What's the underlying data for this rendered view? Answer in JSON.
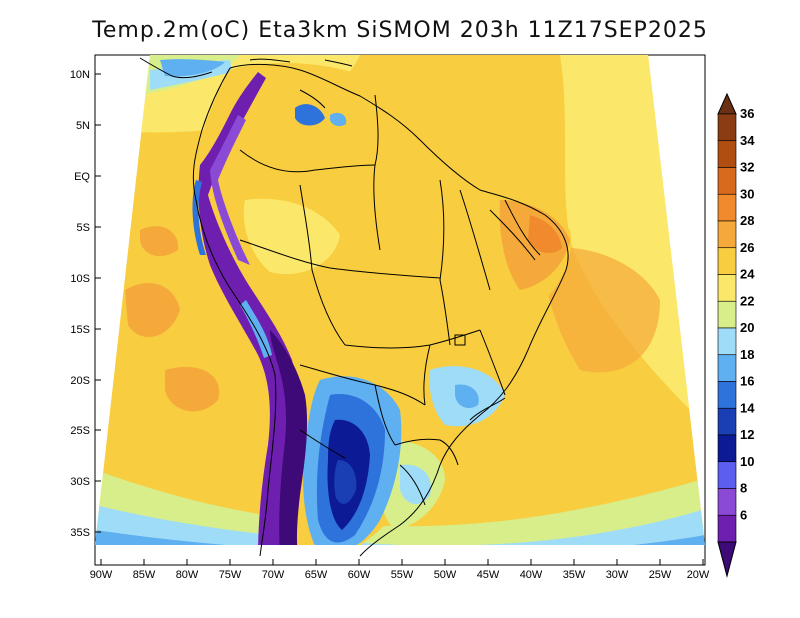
{
  "title": "Temp.2m(oC) Eta3km SiSMOM 203h 11Z17SEP2025",
  "map": {
    "region": "South America",
    "variable": "2 m temperature",
    "units": "oC",
    "lat_labels": [
      "10N",
      "5N",
      "EQ",
      "5S",
      "10S",
      "15S",
      "20S",
      "25S",
      "30S",
      "35S"
    ],
    "lon_labels": [
      "90W",
      "85W",
      "80W",
      "75W",
      "70W",
      "65W",
      "60W",
      "55W",
      "50W",
      "45W",
      "40W",
      "35W",
      "30W",
      "25W",
      "20W"
    ]
  },
  "colorbar": {
    "labels": [
      "36",
      "34",
      "32",
      "30",
      "28",
      "26",
      "24",
      "22",
      "20",
      "18",
      "16",
      "14",
      "12",
      "10",
      "8",
      "6"
    ],
    "colors": [
      "#6b2f14",
      "#8c3c12",
      "#b04e12",
      "#d86a1e",
      "#f08a2c",
      "#f5a93a",
      "#f8cd40",
      "#fbe86a",
      "#d7ee8a",
      "#9fdcf8",
      "#5fb0f0",
      "#2e72dc",
      "#1a3fb4",
      "#0c1a96",
      "#5a5ff0",
      "#8a4ad6",
      "#6f1fb0",
      "#3e0a78"
    ]
  }
}
